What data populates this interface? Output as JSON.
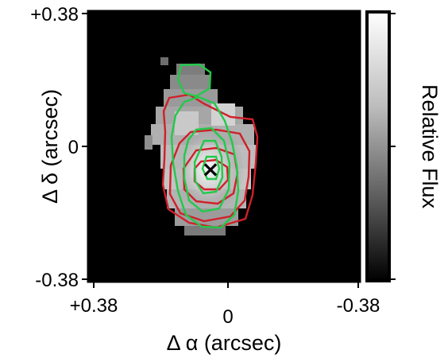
{
  "image": {
    "x_axis": {
      "label": "Δ α (arcsec)",
      "ticks": [
        "+0.38",
        "0",
        "-0.38"
      ]
    },
    "y_axis": {
      "label": "Δ δ (arcsec)",
      "ticks": [
        "+0.38",
        "0",
        "-0.38"
      ]
    },
    "colorbar": {
      "label": "Relative Flux"
    },
    "marker": "×",
    "colors": {
      "background": "#000000",
      "red_contours": "#d0202a",
      "green_contours": "#22c94a",
      "frame": "#000000"
    }
  }
}
